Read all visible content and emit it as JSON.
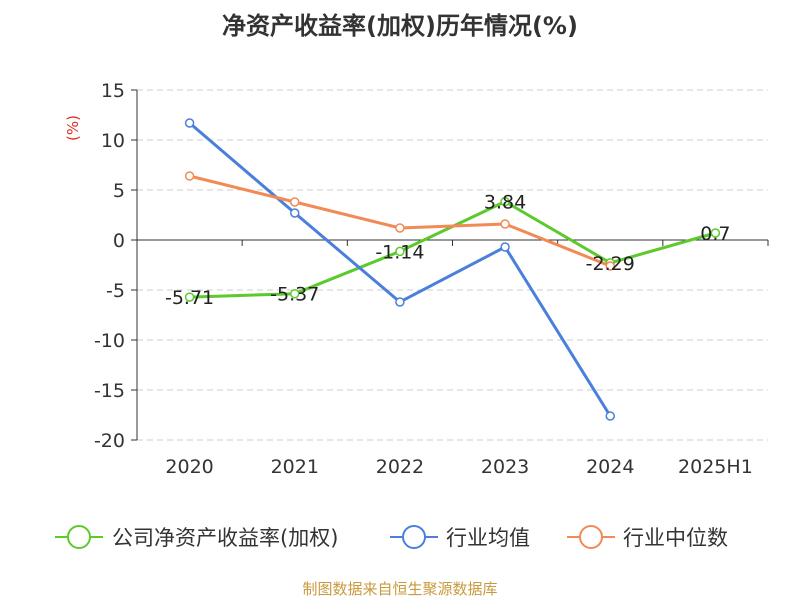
{
  "chart_data": {
    "type": "line",
    "title": "净资产收益率(加权)历年情况(%)",
    "ylabel": "(%)",
    "categories": [
      "2020",
      "2021",
      "2022",
      "2023",
      "2024",
      "2025H1"
    ],
    "ylim": [
      -20,
      15
    ],
    "yticks": [
      15,
      10,
      5,
      0,
      -5,
      -10,
      -15,
      -20
    ],
    "grid": true,
    "legend_position": "bottom",
    "series": [
      {
        "name": "公司净资产收益率(加权)",
        "color": "#5cc92c",
        "values": [
          -5.71,
          -5.37,
          -1.14,
          3.84,
          -2.29,
          0.7
        ],
        "labels": [
          "-5.71",
          "-5.37",
          "-1.14",
          "3.84",
          "-2.29",
          "0.7"
        ]
      },
      {
        "name": "行业均值",
        "color": "#4a7fdb",
        "values": [
          11.7,
          2.7,
          -6.2,
          -0.7,
          -17.6,
          null
        ]
      },
      {
        "name": "行业中位数",
        "color": "#f28a55",
        "values": [
          6.4,
          3.8,
          1.2,
          1.6,
          -2.6,
          null
        ]
      }
    ]
  },
  "footer": "制图数据来自恒生聚源数据库"
}
